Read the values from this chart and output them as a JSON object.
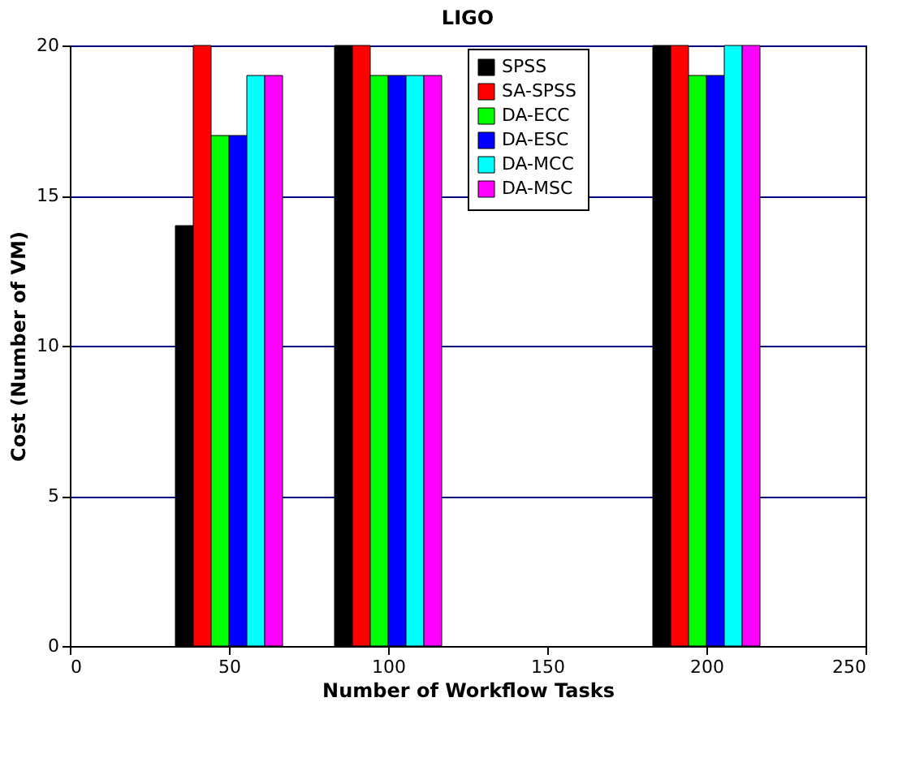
{
  "chart_data": {
    "type": "bar",
    "title": "LIGO",
    "xlabel": "Number of Workflow Tasks",
    "ylabel": "Cost (Number of VM)",
    "x": [
      50,
      100,
      200
    ],
    "series": [
      {
        "name": "SPSS",
        "color": "#000000",
        "values": [
          14,
          20,
          20
        ]
      },
      {
        "name": "SA-SPSS",
        "color": "#ff0000",
        "values": [
          20,
          20,
          20
        ]
      },
      {
        "name": "DA-ECC",
        "color": "#00ff00",
        "values": [
          17,
          19,
          19
        ]
      },
      {
        "name": "DA-ESC",
        "color": "#0000ff",
        "values": [
          17,
          19,
          19
        ]
      },
      {
        "name": "DA-MCC",
        "color": "#00ffff",
        "values": [
          19,
          19,
          20
        ]
      },
      {
        "name": "DA-MSC",
        "color": "#ff00ff",
        "values": [
          19,
          19,
          20
        ]
      }
    ],
    "xlim": [
      0,
      250
    ],
    "xticks": [
      0,
      50,
      100,
      150,
      200,
      250
    ],
    "ylim": [
      0,
      20
    ],
    "yticks": [
      0,
      5,
      10,
      15,
      20
    ],
    "grid": "y",
    "legend": "top"
  }
}
